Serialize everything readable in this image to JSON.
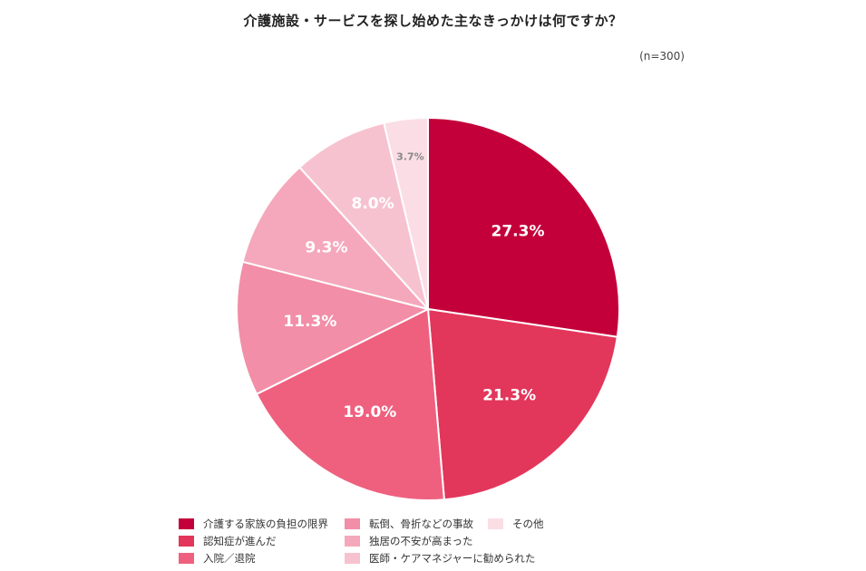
{
  "chart_data": {
    "type": "pie",
    "title": "介護施設・サービスを探し始めた主なきっかけは何ですか？",
    "note": "(n=300)",
    "unit": "%",
    "start_angle": "top",
    "direction": "clockwise",
    "legend_position": "bottom",
    "slices": [
      {
        "label": "介護する家族の負担の限界",
        "value": 27.3,
        "value_label": "27.3%",
        "color": "#c4003a",
        "text_color": "#ffffff"
      },
      {
        "label": "認知症が進んだ",
        "value": 21.3,
        "value_label": "21.3%",
        "color": "#e3365b",
        "text_color": "#ffffff"
      },
      {
        "label": "入院／退院",
        "value": 19.0,
        "value_label": "19.0%",
        "color": "#ef607e",
        "text_color": "#ffffff"
      },
      {
        "label": "転倒、骨折などの事故",
        "value": 11.3,
        "value_label": "11.3%",
        "color": "#f28ea7",
        "text_color": "#ffffff"
      },
      {
        "label": "独居の不安が高まった",
        "value": 9.3,
        "value_label": "9.3%",
        "color": "#f5a8bc",
        "text_color": "#ffffff"
      },
      {
        "label": "医師・ケアマネジャーに勧められた",
        "value": 8.0,
        "value_label": "8.0%",
        "color": "#f7c2d0",
        "text_color": "#ffffff"
      },
      {
        "label": "その他",
        "value": 3.7,
        "value_label": "3.7%",
        "color": "#fbdde5",
        "text_color": "#888888"
      }
    ]
  }
}
